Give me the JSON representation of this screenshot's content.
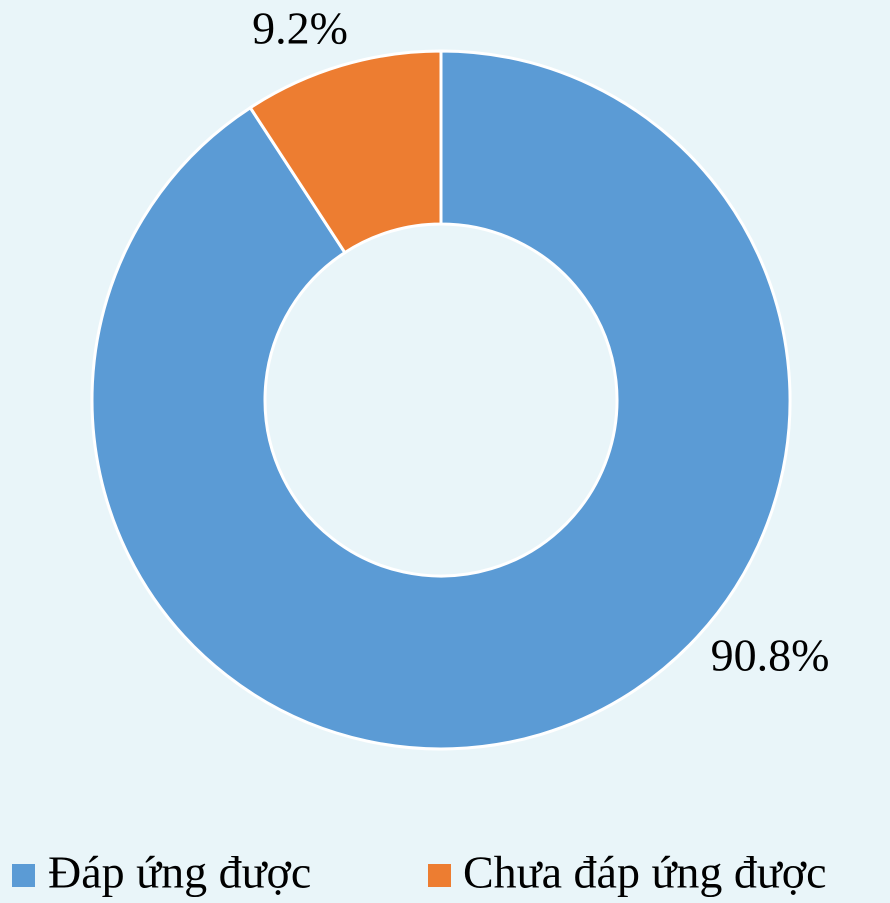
{
  "chart_data": {
    "type": "donut",
    "categories": [
      "Đáp ứng được",
      "Chưa đáp ứng được"
    ],
    "values": [
      90.8,
      9.2
    ],
    "value_labels": [
      "90.8%",
      "9.2%"
    ],
    "colors": [
      "#5b9bd5",
      "#ed7d31"
    ],
    "legend": "bottom"
  }
}
